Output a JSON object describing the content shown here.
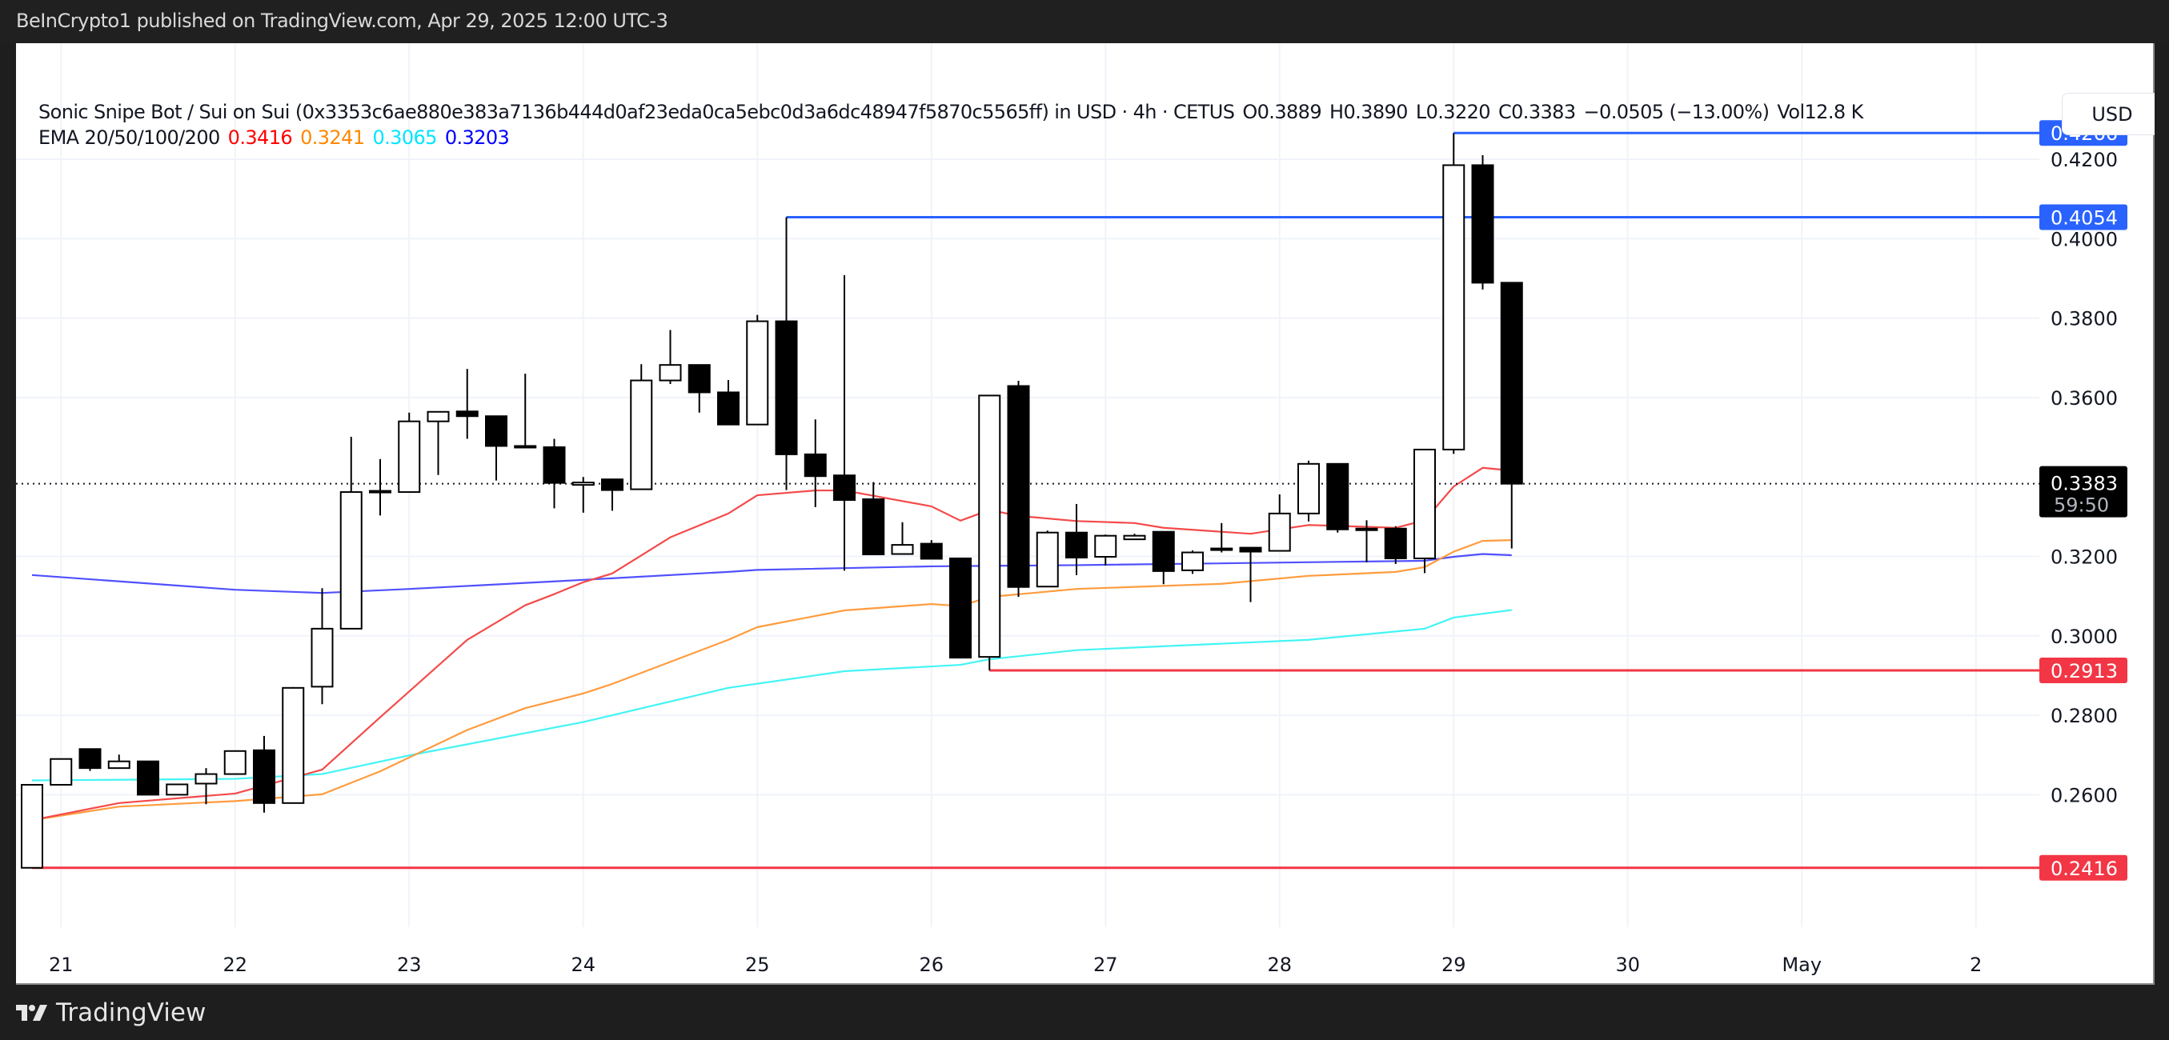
{
  "header": {
    "published": "BeInCrypto1 published on TradingView.com, Apr 29, 2025 12:00 UTC-3"
  },
  "legend": {
    "symbol": "Sonic Snipe Bot / Sui on Sui (0x3353c6ae880e383a7136b444d0af23eda0ca5ebc0d3a6dc48947f5870c5565ff) in USD · 4h · CETUS",
    "open": "O0.3889",
    "high": "H0.3890",
    "low": "L0.3220",
    "close": "C0.3383",
    "change": "−0.0505 (−13.00%)",
    "volume": "Vol12.8 K",
    "ema_label": "EMA 20/50/100/200",
    "ema_values": [
      "0.3416",
      "0.3241",
      "0.3065",
      "0.3203"
    ]
  },
  "currency_button": "USD",
  "footer": {
    "brand": "TradingView"
  },
  "colors": {
    "ema20": "#f44a4a",
    "ema50": "#ff9b3d",
    "ema100": "#44f4f4",
    "ema200": "#5050ff",
    "ema20_text": "#ff0000",
    "ema50_text": "#ff8800",
    "ema100_text": "#00e6ff",
    "ema200_text": "#0000ff",
    "resistance": "#2962ff",
    "support": "#f23645",
    "candle": "#000000",
    "grid": "#f0f3fa"
  },
  "chart_data": {
    "type": "candlestick",
    "interval": "4h",
    "start": "2025-04-20T20:00",
    "ylim": [
      0.23,
      0.44
    ],
    "y_ticks": [
      "0.4200",
      "0.4000",
      "0.3800",
      "0.3600",
      "0.3200",
      "0.3000",
      "0.2800",
      "0.2600"
    ],
    "x_ticks": [
      {
        "label": "21",
        "date": "2025-04-21T00:00"
      },
      {
        "label": "22",
        "date": "2025-04-22T00:00"
      },
      {
        "label": "23",
        "date": "2025-04-23T00:00"
      },
      {
        "label": "24",
        "date": "2025-04-24T00:00"
      },
      {
        "label": "25",
        "date": "2025-04-25T00:00"
      },
      {
        "label": "26",
        "date": "2025-04-26T00:00"
      },
      {
        "label": "27",
        "date": "2025-04-27T00:00"
      },
      {
        "label": "28",
        "date": "2025-04-28T00:00"
      },
      {
        "label": "29",
        "date": "2025-04-29T00:00"
      },
      {
        "label": "30",
        "date": "2025-04-30T00:00"
      },
      {
        "label": "May",
        "date": "2025-05-01T00:00"
      },
      {
        "label": "2",
        "date": "2025-05-02T00:00"
      }
    ],
    "ohlc": [
      [
        0.2416,
        0.2625,
        0.2416,
        0.2625
      ],
      [
        0.2625,
        0.269,
        0.2625,
        0.269
      ],
      [
        0.2715,
        0.2715,
        0.266,
        0.2667
      ],
      [
        0.2667,
        0.2701,
        0.2667,
        0.2684
      ],
      [
        0.2684,
        0.2684,
        0.26,
        0.26
      ],
      [
        0.26,
        0.2626,
        0.26,
        0.2626
      ],
      [
        0.2628,
        0.2667,
        0.2576,
        0.2652
      ],
      [
        0.2652,
        0.271,
        0.2652,
        0.271
      ],
      [
        0.2712,
        0.2748,
        0.2555,
        0.2579
      ],
      [
        0.2579,
        0.2871,
        0.2579,
        0.2869
      ],
      [
        0.2872,
        0.312,
        0.2828,
        0.3018
      ],
      [
        0.3018,
        0.3501,
        0.3018,
        0.3362
      ],
      [
        0.3363,
        0.3445,
        0.3303,
        0.3365
      ],
      [
        0.3362,
        0.3562,
        0.3362,
        0.354
      ],
      [
        0.354,
        0.3564,
        0.3405,
        0.3564
      ],
      [
        0.3565,
        0.3672,
        0.3496,
        0.3553
      ],
      [
        0.3553,
        0.3553,
        0.3391,
        0.3478
      ],
      [
        0.3478,
        0.366,
        0.3476,
        0.3476
      ],
      [
        0.3475,
        0.3496,
        0.3321,
        0.3385
      ],
      [
        0.338,
        0.34,
        0.331,
        0.3386
      ],
      [
        0.3394,
        0.3394,
        0.3315,
        0.3367
      ],
      [
        0.3369,
        0.3684,
        0.3369,
        0.3643
      ],
      [
        0.3643,
        0.377,
        0.3634,
        0.3682
      ],
      [
        0.3682,
        0.3682,
        0.3562,
        0.3613
      ],
      [
        0.3613,
        0.3644,
        0.3532,
        0.3532
      ],
      [
        0.3532,
        0.3808,
        0.3532,
        0.3792
      ],
      [
        0.3792,
        0.4054,
        0.3367,
        0.3457
      ],
      [
        0.3457,
        0.3545,
        0.3324,
        0.3402
      ],
      [
        0.3404,
        0.3908,
        0.3164,
        0.3342
      ],
      [
        0.3344,
        0.3387,
        0.3205,
        0.3205
      ],
      [
        0.3206,
        0.3286,
        0.3206,
        0.3229
      ],
      [
        0.3232,
        0.3241,
        0.3194,
        0.3194
      ],
      [
        0.3195,
        0.3195,
        0.2945,
        0.2945
      ],
      [
        0.2947,
        0.3605,
        0.2913,
        0.3605
      ],
      [
        0.3629,
        0.3642,
        0.3098,
        0.3123
      ],
      [
        0.3124,
        0.3265,
        0.3124,
        0.326
      ],
      [
        0.326,
        0.3332,
        0.3153,
        0.3197
      ],
      [
        0.3199,
        0.3255,
        0.3177,
        0.3252
      ],
      [
        0.3243,
        0.3257,
        0.3243,
        0.3252
      ],
      [
        0.3262,
        0.3262,
        0.313,
        0.3163
      ],
      [
        0.3165,
        0.3215,
        0.3156,
        0.321
      ],
      [
        0.3217,
        0.3284,
        0.321,
        0.322
      ],
      [
        0.3222,
        0.3222,
        0.3085,
        0.3212
      ],
      [
        0.3214,
        0.3356,
        0.3214,
        0.3308
      ],
      [
        0.3308,
        0.3441,
        0.3288,
        0.3433
      ],
      [
        0.3433,
        0.3433,
        0.326,
        0.3268
      ],
      [
        0.327,
        0.3291,
        0.3185,
        0.327
      ],
      [
        0.327,
        0.3276,
        0.3181,
        0.3195
      ],
      [
        0.3195,
        0.3469,
        0.3158,
        0.3469
      ],
      [
        0.3469,
        0.4266,
        0.3458,
        0.4185
      ],
      [
        0.4185,
        0.421,
        0.3872,
        0.3889
      ],
      [
        0.3889,
        0.389,
        0.322,
        0.3383
      ]
    ],
    "ema": {
      "ema20": [
        [
          1,
          0.2536
        ],
        [
          4,
          0.2579
        ],
        [
          8,
          0.2603
        ],
        [
          11,
          0.2663
        ],
        [
          13,
          0.2795
        ],
        [
          16,
          0.299
        ],
        [
          18,
          0.3077
        ],
        [
          19,
          0.3105
        ],
        [
          20,
          0.3135
        ],
        [
          21,
          0.3157
        ],
        [
          23,
          0.3248
        ],
        [
          25,
          0.3308
        ],
        [
          26,
          0.3354
        ],
        [
          28,
          0.3366
        ],
        [
          29,
          0.3366
        ],
        [
          32,
          0.3326
        ],
        [
          33,
          0.329
        ],
        [
          34,
          0.3317
        ],
        [
          35,
          0.3302
        ],
        [
          37,
          0.3289
        ],
        [
          39,
          0.3284
        ],
        [
          40,
          0.3272
        ],
        [
          43,
          0.3257
        ],
        [
          45,
          0.3279
        ],
        [
          48,
          0.3272
        ],
        [
          49,
          0.3291
        ],
        [
          50,
          0.3376
        ],
        [
          51,
          0.3423
        ],
        [
          52,
          0.3416
        ]
      ],
      "ema50": [
        [
          1,
          0.2536
        ],
        [
          4,
          0.257
        ],
        [
          8,
          0.2584
        ],
        [
          11,
          0.2601
        ],
        [
          13,
          0.2659
        ],
        [
          16,
          0.2763
        ],
        [
          18,
          0.2818
        ],
        [
          20,
          0.2855
        ],
        [
          21,
          0.2879
        ],
        [
          25,
          0.299
        ],
        [
          26,
          0.3022
        ],
        [
          29,
          0.3064
        ],
        [
          32,
          0.308
        ],
        [
          33,
          0.3075
        ],
        [
          34,
          0.3098
        ],
        [
          37,
          0.3118
        ],
        [
          42,
          0.3131
        ],
        [
          45,
          0.3151
        ],
        [
          48,
          0.3161
        ],
        [
          49,
          0.3173
        ],
        [
          50,
          0.3212
        ],
        [
          51,
          0.3239
        ],
        [
          52,
          0.3241
        ]
      ],
      "ema100": [
        [
          1,
          0.2636
        ],
        [
          8,
          0.264
        ],
        [
          11,
          0.2652
        ],
        [
          14,
          0.2699
        ],
        [
          20,
          0.2783
        ],
        [
          25,
          0.2869
        ],
        [
          29,
          0.2911
        ],
        [
          33,
          0.2927
        ],
        [
          34,
          0.2941
        ],
        [
          37,
          0.2964
        ],
        [
          45,
          0.299
        ],
        [
          49,
          0.3018
        ],
        [
          50,
          0.3046
        ],
        [
          52,
          0.3065
        ]
      ],
      "ema200": [
        [
          1,
          0.3153
        ],
        [
          8,
          0.3116
        ],
        [
          11,
          0.3108
        ],
        [
          14,
          0.3118
        ],
        [
          19,
          0.3137
        ],
        [
          20,
          0.3141
        ],
        [
          25,
          0.3161
        ],
        [
          26,
          0.3166
        ],
        [
          32,
          0.3175
        ],
        [
          37,
          0.3178
        ],
        [
          49,
          0.3189
        ],
        [
          50,
          0.3199
        ],
        [
          51,
          0.3206
        ],
        [
          52,
          0.3203
        ]
      ]
    },
    "levels": [
      {
        "price": 0.4266,
        "label": "0.4266",
        "kind": "resistance",
        "from_candle": 50
      },
      {
        "price": 0.4054,
        "label": "0.4054",
        "kind": "resistance",
        "from_candle": 27
      },
      {
        "price": 0.2913,
        "label": "0.2913",
        "kind": "support",
        "from_candle": 34
      },
      {
        "price": 0.2416,
        "label": "0.2416",
        "kind": "support",
        "from_candle": 1
      }
    ],
    "last_price": {
      "price": 0.3383,
      "label": "0.3383",
      "countdown": "59:50"
    },
    "grid": true
  }
}
